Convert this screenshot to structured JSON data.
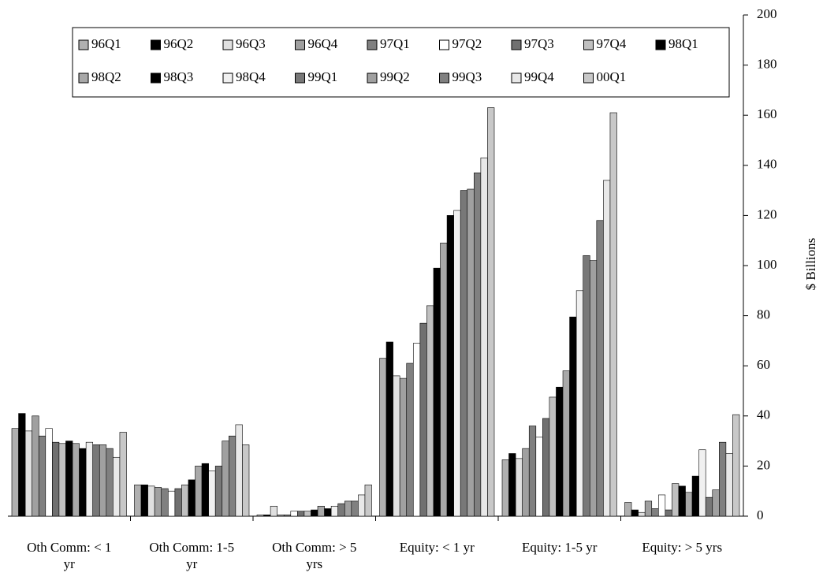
{
  "chart_data": {
    "type": "bar",
    "y_label": "$ Billions",
    "categories": [
      "Oth Comm: < 1 yr",
      "Oth Comm: 1-5 yr",
      "Oth Comm: > 5 yrs",
      "Equity: < 1 yr",
      "Equity: 1-5 yr",
      "Equity: > 5 yrs"
    ],
    "ylim": [
      0,
      200
    ],
    "yticks": [
      0,
      20,
      40,
      60,
      80,
      100,
      120,
      140,
      160,
      180,
      200
    ],
    "series": [
      {
        "name": "96Q1",
        "color": "#b0b0b0",
        "values": [
          35,
          12.5,
          0.5,
          63,
          22.5,
          5.5
        ]
      },
      {
        "name": "96Q2",
        "color": "#000000",
        "values": [
          41,
          12.5,
          0.5,
          69.5,
          25,
          2.5
        ]
      },
      {
        "name": "96Q3",
        "color": "#e0e0e0",
        "values": [
          34,
          12,
          4,
          56,
          23,
          1.5
        ]
      },
      {
        "name": "96Q4",
        "color": "#a0a0a0",
        "values": [
          40,
          11.5,
          0.5,
          55,
          27,
          6
        ]
      },
      {
        "name": "97Q1",
        "color": "#808080",
        "values": [
          32,
          11,
          0.5,
          61,
          36,
          3
        ]
      },
      {
        "name": "97Q2",
        "color": "#ffffff",
        "values": [
          35,
          10,
          2,
          69,
          31.5,
          8.5
        ]
      },
      {
        "name": "97Q3",
        "color": "#707070",
        "values": [
          29.5,
          11,
          2,
          77,
          39,
          2.5
        ]
      },
      {
        "name": "97Q4",
        "color": "#c0c0c0",
        "values": [
          29,
          12.5,
          2,
          84,
          47.5,
          13
        ]
      },
      {
        "name": "98Q1",
        "color": "#000000",
        "values": [
          30,
          14.5,
          2.5,
          99,
          51.5,
          12
        ]
      },
      {
        "name": "98Q2",
        "color": "#a8a8a8",
        "values": [
          29,
          20,
          4,
          109,
          58,
          9.5
        ]
      },
      {
        "name": "98Q3",
        "color": "#000000",
        "values": [
          27,
          21,
          3,
          120,
          79.5,
          16
        ]
      },
      {
        "name": "98Q4",
        "color": "#f0f0f0",
        "values": [
          29.5,
          18,
          4,
          122,
          90,
          26.5
        ]
      },
      {
        "name": "99Q1",
        "color": "#787878",
        "values": [
          28.5,
          20,
          5,
          130,
          104,
          7.5
        ]
      },
      {
        "name": "99Q2",
        "color": "#a0a0a0",
        "values": [
          28.5,
          30,
          6,
          130.5,
          102,
          10.5
        ]
      },
      {
        "name": "99Q3",
        "color": "#808080",
        "values": [
          27,
          32,
          6,
          137,
          118,
          29.5
        ]
      },
      {
        "name": "99Q4",
        "color": "#e8e8e8",
        "values": [
          23.5,
          36.5,
          8.5,
          143,
          134,
          25
        ]
      },
      {
        "name": "00Q1",
        "color": "#c8c8c8",
        "values": [
          33.5,
          28.5,
          12.5,
          163,
          161,
          40.5
        ]
      }
    ]
  }
}
